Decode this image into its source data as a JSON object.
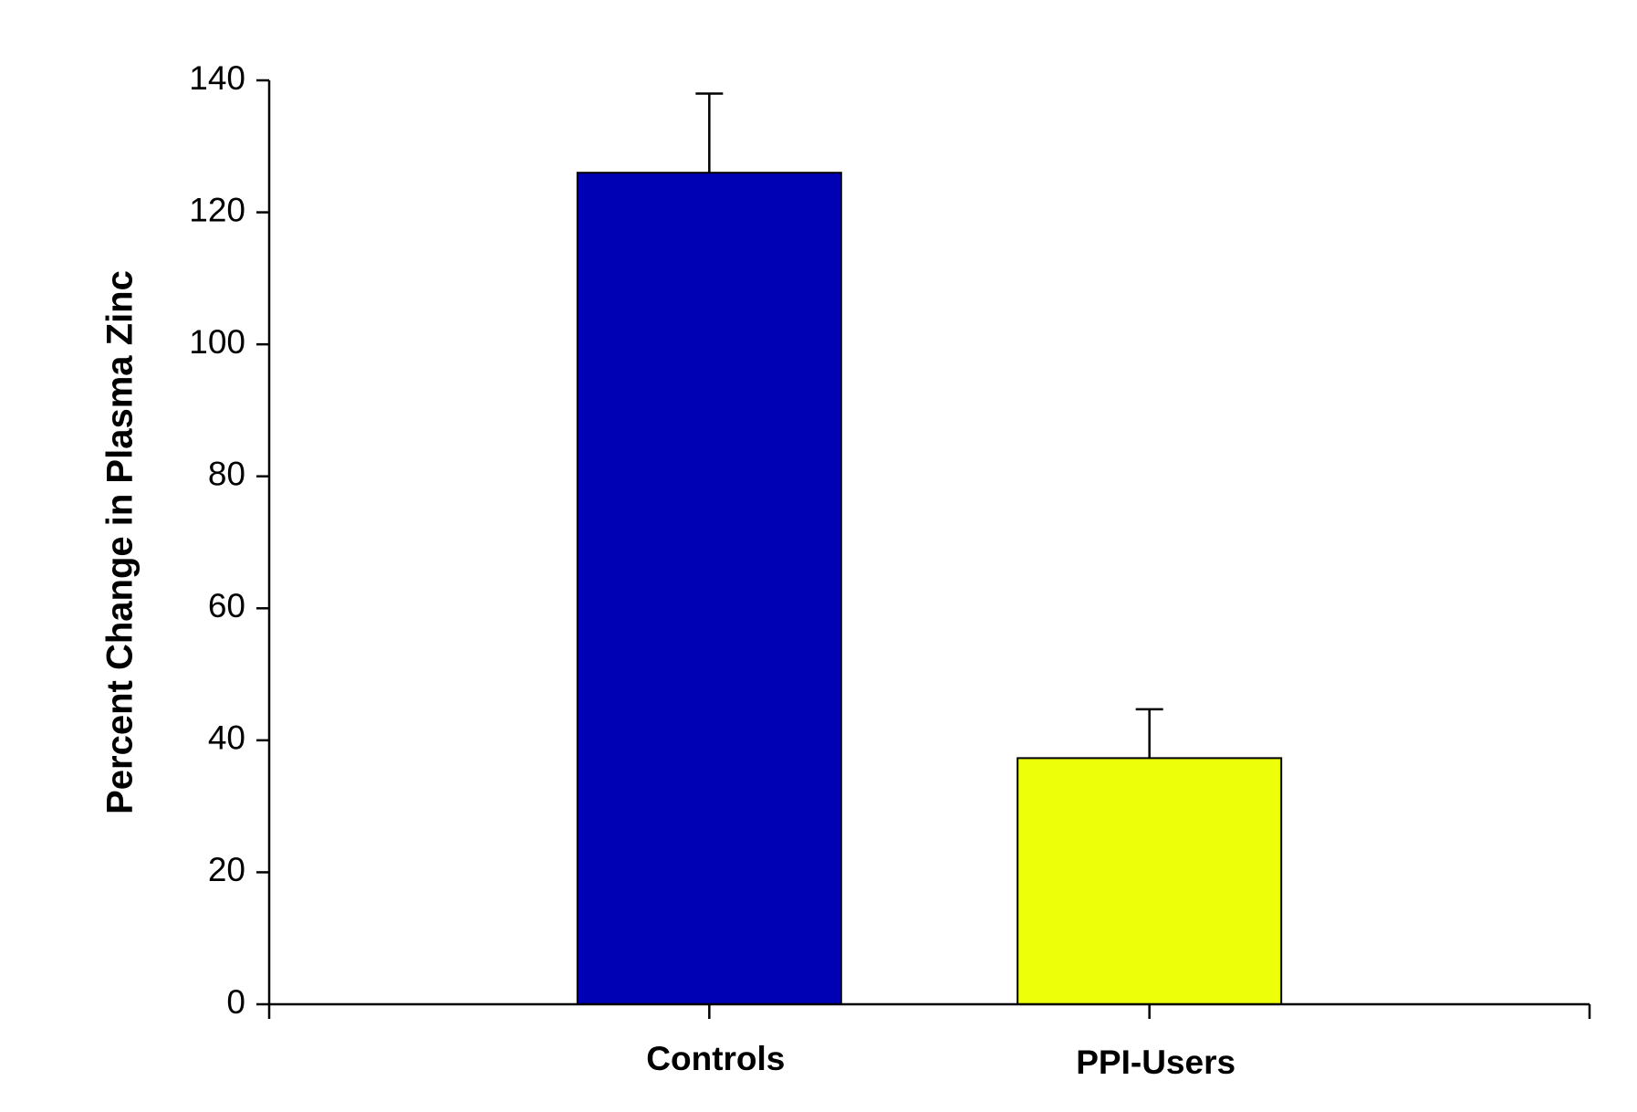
{
  "chart_data": {
    "type": "bar",
    "y_label": "Percent Change in Plasma Zinc",
    "categories": [
      "Controls",
      "PPI-Users"
    ],
    "values": [
      126,
      37.3
    ],
    "errors": [
      12,
      7.4
    ],
    "colors": [
      "#0000b4",
      "#eeff0a"
    ],
    "ylim": [
      0,
      140
    ],
    "yticks": [
      0,
      20,
      40,
      60,
      80,
      100,
      120,
      140
    ],
    "grid": false
  }
}
